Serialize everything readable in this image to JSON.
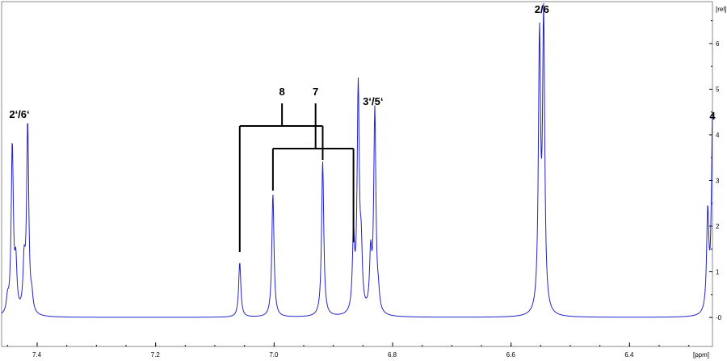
{
  "chart_data": {
    "type": "line",
    "title": "",
    "xlabel": "[ppm]",
    "ylabel": "[rel]",
    "x_reversed": true,
    "xlim": [
      7.46,
      6.26
    ],
    "ylim": [
      -0.3,
      6.6
    ],
    "x_ticks": [
      "7.4",
      "7.2",
      "7.0",
      "6.8",
      "6.6",
      "6.4"
    ],
    "y_ticks": [
      "-0",
      "1",
      "2",
      "3",
      "4",
      "5",
      "6"
    ],
    "grid": false,
    "line_color": "#2222cc",
    "baseline": 0,
    "series": [
      {
        "peaks": [
          {
            "ppm": 7.45,
            "height": 0.3
          },
          {
            "ppm": 7.442,
            "height": 3.7
          },
          {
            "ppm": 7.436,
            "height": 1.0
          },
          {
            "ppm": 7.422,
            "height": 1.0
          },
          {
            "ppm": 7.416,
            "height": 4.15
          },
          {
            "ppm": 7.409,
            "height": 0.3
          },
          {
            "ppm": 7.058,
            "height": 1.2
          },
          {
            "ppm": 7.002,
            "height": 2.7
          },
          {
            "ppm": 6.918,
            "height": 3.4
          },
          {
            "ppm": 6.866,
            "height": 1.6
          },
          {
            "ppm": 6.858,
            "height": 4.9
          },
          {
            "ppm": 6.853,
            "height": 1.2
          },
          {
            "ppm": 6.837,
            "height": 1.2
          },
          {
            "ppm": 6.83,
            "height": 4.45
          },
          {
            "ppm": 6.824,
            "height": 0.3
          },
          {
            "ppm": 6.552,
            "height": 5.9
          },
          {
            "ppm": 6.545,
            "height": 6.35
          },
          {
            "ppm": 6.268,
            "height": 2.15
          },
          {
            "ppm": 6.26,
            "height": 4.1
          },
          {
            "ppm": 6.253,
            "height": 2.0
          }
        ]
      }
    ],
    "annotations": [
      {
        "label": "2‘/6‘",
        "ppm": 7.43,
        "type": "text"
      },
      {
        "label": "8",
        "ppm": 6.988,
        "type": "bracket",
        "legs": [
          7.058,
          6.918
        ]
      },
      {
        "label": "7",
        "ppm": 6.93,
        "type": "bracket",
        "legs": [
          7.002,
          6.866
        ]
      },
      {
        "label": "3‘/5‘",
        "ppm": 6.833,
        "type": "text"
      },
      {
        "label": "2/6",
        "ppm": 6.548,
        "type": "text"
      },
      {
        "label": "4",
        "ppm": 6.26,
        "type": "text"
      }
    ]
  }
}
